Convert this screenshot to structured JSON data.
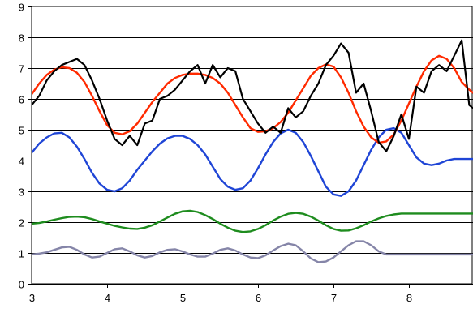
{
  "chart_data": {
    "type": "line",
    "title": "",
    "xlabel": "",
    "ylabel": "",
    "xlim": [
      3,
      8.85
    ],
    "ylim": [
      0,
      9
    ],
    "x_ticks": [
      3,
      4,
      5,
      6,
      7,
      8
    ],
    "y_ticks": [
      0,
      1,
      2,
      3,
      4,
      5,
      6,
      7,
      8,
      9
    ],
    "grid": "horizontal",
    "legend": "none",
    "series": [
      {
        "color": "#000000",
        "x": [
          3.0,
          3.1,
          3.2,
          3.3,
          3.4,
          3.5,
          3.6,
          3.7,
          3.8,
          3.9,
          4.0,
          4.1,
          4.2,
          4.3,
          4.4,
          4.5,
          4.6,
          4.7,
          4.8,
          4.9,
          5.0,
          5.1,
          5.2,
          5.3,
          5.4,
          5.5,
          5.6,
          5.7,
          5.8,
          5.9,
          6.0,
          6.1,
          6.2,
          6.3,
          6.4,
          6.5,
          6.6,
          6.7,
          6.8,
          6.9,
          7.0,
          7.1,
          7.2,
          7.3,
          7.4,
          7.5,
          7.6,
          7.7,
          7.8,
          7.9,
          8.0,
          8.1,
          8.2,
          8.3,
          8.4,
          8.5,
          8.6,
          8.7,
          8.8,
          8.85
        ],
        "values": [
          5.8,
          6.1,
          6.6,
          6.9,
          7.1,
          7.2,
          7.3,
          7.1,
          6.6,
          6.0,
          5.3,
          4.7,
          4.5,
          4.8,
          4.5,
          5.2,
          5.3,
          6.0,
          6.1,
          6.3,
          6.6,
          6.9,
          7.1,
          6.5,
          7.1,
          6.7,
          7.0,
          6.9,
          6.0,
          5.6,
          5.2,
          4.9,
          5.1,
          4.9,
          5.7,
          5.4,
          5.6,
          6.1,
          6.5,
          7.1,
          7.4,
          7.8,
          7.5,
          6.2,
          6.5,
          5.6,
          4.6,
          4.3,
          4.8,
          5.5,
          4.7,
          6.4,
          6.2,
          6.9,
          7.1,
          6.9,
          7.4,
          7.9,
          5.8,
          5.7
        ]
      },
      {
        "color": "#ff2a00",
        "x": [
          3.0,
          3.1,
          3.2,
          3.3,
          3.4,
          3.5,
          3.6,
          3.7,
          3.8,
          3.9,
          4.0,
          4.1,
          4.2,
          4.3,
          4.4,
          4.5,
          4.6,
          4.7,
          4.8,
          4.9,
          5.0,
          5.1,
          5.2,
          5.3,
          5.4,
          5.5,
          5.6,
          5.7,
          5.8,
          5.9,
          6.0,
          6.1,
          6.2,
          6.3,
          6.4,
          6.5,
          6.6,
          6.7,
          6.8,
          6.9,
          7.0,
          7.1,
          7.2,
          7.3,
          7.4,
          7.5,
          7.6,
          7.7,
          7.8,
          7.9,
          8.0,
          8.1,
          8.2,
          8.3,
          8.4,
          8.5,
          8.6,
          8.7,
          8.8,
          8.85
        ],
        "values": [
          6.15,
          6.5,
          6.78,
          6.95,
          7.03,
          7.0,
          6.85,
          6.55,
          6.1,
          5.6,
          5.15,
          4.9,
          4.85,
          4.95,
          5.2,
          5.55,
          5.9,
          6.2,
          6.5,
          6.68,
          6.78,
          6.82,
          6.82,
          6.78,
          6.68,
          6.5,
          6.2,
          5.8,
          5.4,
          5.05,
          4.93,
          4.95,
          5.05,
          5.25,
          5.55,
          5.95,
          6.35,
          6.75,
          7.0,
          7.12,
          7.05,
          6.7,
          6.2,
          5.6,
          5.1,
          4.75,
          4.58,
          4.62,
          4.85,
          5.3,
          5.85,
          6.4,
          6.9,
          7.25,
          7.4,
          7.3,
          7.0,
          6.55,
          6.3,
          6.2
        ]
      },
      {
        "color": "#1f45d6",
        "x": [
          3.0,
          3.1,
          3.2,
          3.3,
          3.4,
          3.5,
          3.6,
          3.7,
          3.8,
          3.9,
          4.0,
          4.1,
          4.2,
          4.3,
          4.4,
          4.5,
          4.6,
          4.7,
          4.8,
          4.9,
          5.0,
          5.1,
          5.2,
          5.3,
          5.4,
          5.5,
          5.6,
          5.7,
          5.8,
          5.9,
          6.0,
          6.1,
          6.2,
          6.3,
          6.4,
          6.5,
          6.6,
          6.7,
          6.8,
          6.9,
          7.0,
          7.1,
          7.2,
          7.3,
          7.4,
          7.5,
          7.6,
          7.7,
          7.8,
          7.9,
          8.0,
          8.1,
          8.2,
          8.3,
          8.4,
          8.5,
          8.6,
          8.7,
          8.8,
          8.85
        ],
        "values": [
          4.25,
          4.55,
          4.75,
          4.88,
          4.9,
          4.75,
          4.45,
          4.05,
          3.6,
          3.25,
          3.05,
          3.0,
          3.1,
          3.35,
          3.7,
          4.0,
          4.3,
          4.55,
          4.72,
          4.8,
          4.8,
          4.7,
          4.5,
          4.2,
          3.8,
          3.4,
          3.15,
          3.05,
          3.1,
          3.35,
          3.75,
          4.2,
          4.6,
          4.88,
          5.0,
          4.9,
          4.6,
          4.15,
          3.65,
          3.15,
          2.9,
          2.85,
          3.0,
          3.35,
          3.85,
          4.35,
          4.75,
          5.0,
          5.05,
          4.9,
          4.5,
          4.1,
          3.9,
          3.85,
          3.9,
          4.0,
          4.05,
          4.05,
          4.05,
          4.05
        ]
      },
      {
        "color": "#1e8c1e",
        "x": [
          3.0,
          3.1,
          3.2,
          3.3,
          3.4,
          3.5,
          3.6,
          3.7,
          3.8,
          3.9,
          4.0,
          4.1,
          4.2,
          4.3,
          4.4,
          4.5,
          4.6,
          4.7,
          4.8,
          4.9,
          5.0,
          5.1,
          5.2,
          5.3,
          5.4,
          5.5,
          5.6,
          5.7,
          5.8,
          5.9,
          6.0,
          6.1,
          6.2,
          6.3,
          6.4,
          6.5,
          6.6,
          6.7,
          6.8,
          6.9,
          7.0,
          7.1,
          7.2,
          7.3,
          7.4,
          7.5,
          7.6,
          7.7,
          7.8,
          7.9,
          8.0,
          8.1,
          8.2,
          8.3,
          8.4,
          8.5,
          8.6,
          8.7,
          8.8,
          8.85
        ],
        "values": [
          1.95,
          1.97,
          2.02,
          2.08,
          2.13,
          2.17,
          2.18,
          2.16,
          2.1,
          2.02,
          1.95,
          1.88,
          1.83,
          1.79,
          1.78,
          1.82,
          1.9,
          2.02,
          2.15,
          2.27,
          2.35,
          2.37,
          2.33,
          2.23,
          2.1,
          1.95,
          1.82,
          1.72,
          1.68,
          1.7,
          1.78,
          1.9,
          2.05,
          2.18,
          2.27,
          2.3,
          2.27,
          2.18,
          2.05,
          1.9,
          1.78,
          1.72,
          1.73,
          1.8,
          1.9,
          2.02,
          2.12,
          2.2,
          2.25,
          2.28,
          2.28,
          2.28,
          2.28,
          2.28,
          2.28,
          2.28,
          2.28,
          2.28,
          2.28,
          2.28
        ]
      },
      {
        "color": "#8585a8",
        "x": [
          3.0,
          3.1,
          3.2,
          3.3,
          3.4,
          3.5,
          3.6,
          3.7,
          3.8,
          3.9,
          4.0,
          4.1,
          4.2,
          4.3,
          4.4,
          4.5,
          4.6,
          4.7,
          4.8,
          4.9,
          5.0,
          5.1,
          5.2,
          5.3,
          5.4,
          5.5,
          5.6,
          5.7,
          5.8,
          5.9,
          6.0,
          6.1,
          6.2,
          6.3,
          6.4,
          6.5,
          6.6,
          6.7,
          6.8,
          6.9,
          7.0,
          7.1,
          7.2,
          7.3,
          7.4,
          7.5,
          7.6,
          7.7,
          7.8,
          7.9,
          8.0,
          8.1,
          8.2,
          8.3,
          8.4,
          8.5,
          8.6,
          8.7,
          8.8,
          8.85
        ],
        "values": [
          0.95,
          0.98,
          1.02,
          1.1,
          1.18,
          1.2,
          1.1,
          0.95,
          0.85,
          0.88,
          1.0,
          1.12,
          1.15,
          1.05,
          0.92,
          0.85,
          0.9,
          1.02,
          1.1,
          1.12,
          1.05,
          0.95,
          0.88,
          0.88,
          0.98,
          1.1,
          1.15,
          1.08,
          0.95,
          0.85,
          0.83,
          0.92,
          1.08,
          1.22,
          1.3,
          1.25,
          1.05,
          0.82,
          0.7,
          0.72,
          0.85,
          1.05,
          1.25,
          1.38,
          1.38,
          1.25,
          1.05,
          0.95,
          0.95,
          0.95,
          0.95,
          0.95,
          0.95,
          0.95,
          0.95,
          0.95,
          0.95,
          0.95,
          0.95,
          0.95
        ]
      }
    ]
  }
}
